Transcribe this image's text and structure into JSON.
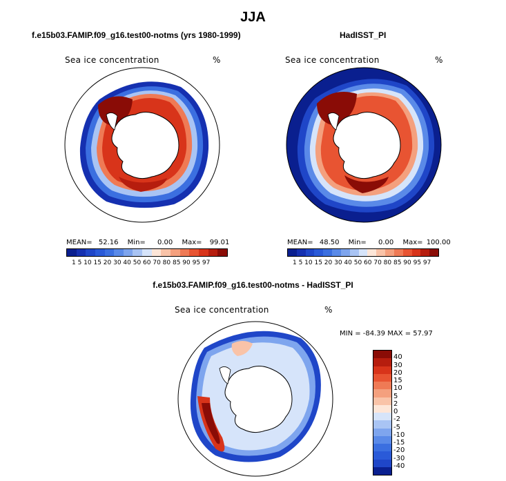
{
  "figure": {
    "title": "JJA"
  },
  "panels": [
    {
      "title": "f.e15b03.FAMIP.f09_g16.test00-notms (yrs 1980-1999)",
      "variable": "Sea ice concentration",
      "units": "%",
      "mean_label": "MEAN=",
      "mean": "52.16",
      "min_label": "Min=",
      "min": "0.00",
      "max_label": "Max=",
      "max": "99.01",
      "ice_field": "model",
      "open_ocean_masked": true
    },
    {
      "title": "HadISST_PI",
      "variable": "Sea ice concentration",
      "units": "%",
      "mean_label": "MEAN=",
      "mean": "48.50",
      "min_label": "Min=",
      "min": "0.00",
      "max_label": "Max=",
      "max": "100.00",
      "ice_field": "observed",
      "open_ocean_masked": false
    }
  ],
  "colorbar_levels": [
    "1",
    "5",
    "10",
    "15",
    "20",
    "30",
    "40",
    "50",
    "60",
    "70",
    "80",
    "85",
    "90",
    "95",
    "97"
  ],
  "colorbar_labels_text": "1 5 10 15 20 30 40 50 60 70 80 85 90 95 97",
  "colorbar_colors": [
    "#0a1f8f",
    "#1530b0",
    "#1f46c8",
    "#2a5ad8",
    "#3b6fe0",
    "#5a8ae8",
    "#7ea5ee",
    "#a9c4f4",
    "#d6e4fa",
    "#fde6d8",
    "#f9c3a8",
    "#f4a07e",
    "#ef7a55",
    "#e85432",
    "#d8341a",
    "#b61d0e",
    "#8a0c06"
  ],
  "difference_panel": {
    "title": "f.e15b03.FAMIP.f09_g16.test00-notms - HadISST_PI",
    "variable": "Sea ice concentration",
    "units": "%",
    "min_max_text": "MIN = -84.39 MAX =  57.97",
    "levels": [
      "40",
      "30",
      "20",
      "15",
      "10",
      "5",
      "2",
      "0",
      "-2",
      "-5",
      "-10",
      "-15",
      "-20",
      "-30",
      "-40"
    ],
    "colors": [
      "#8a0c06",
      "#b61d0e",
      "#d8341a",
      "#e85432",
      "#ef7a55",
      "#f4a07e",
      "#f9c3a8",
      "#fde6d8",
      "#d6e4fa",
      "#a9c4f4",
      "#7ea5ee",
      "#5a8ae8",
      "#3b6fe0",
      "#2a5ad8",
      "#1f46c8",
      "#0a1f8f"
    ]
  },
  "map": {
    "projection": "south-polar-stereographic",
    "continent": "Antarctica",
    "season": "JJA"
  }
}
